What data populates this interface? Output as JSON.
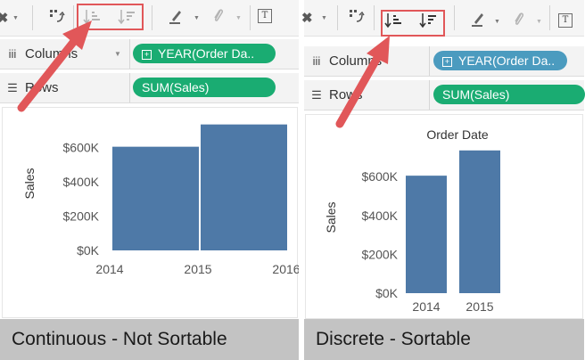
{
  "left_panel": {
    "shelves": {
      "columns": {
        "label": "Columns",
        "pill": "YEAR(Order Da..",
        "pill_plus": "+",
        "icon": "columns-icon"
      },
      "rows": {
        "label": "Rows",
        "pill": "SUM(Sales)",
        "icon": "rows-icon"
      }
    },
    "caption": "Continuous - Not Sortable"
  },
  "right_panel": {
    "shelves": {
      "columns": {
        "label": "Columns",
        "pill": "YEAR(Order Da..",
        "pill_plus": "+",
        "icon": "columns-icon"
      },
      "rows": {
        "label": "Rows",
        "pill": "SUM(Sales)",
        "icon": "rows-icon"
      }
    },
    "caption": "Discrete - Sortable"
  },
  "toolbar": {
    "icons": [
      "clear-icon",
      "swap-icon",
      "sort-ascending-icon",
      "sort-descending-icon",
      "highlight-pen-icon",
      "pin-icon",
      "text-label-icon"
    ],
    "text_icon_glyph": "T"
  },
  "colors": {
    "bar": "#4e79a7",
    "highlight": "#e15759",
    "pill_green": "#1aac72",
    "pill_blue": "#4b9bbf",
    "caption_bg": "#c3c3c3"
  },
  "chart_data": [
    {
      "type": "bar",
      "variant": "continuous",
      "title": "",
      "ylabel": "Sales",
      "xlabel": "",
      "x_ticks": [
        "2014",
        "2015",
        "2016"
      ],
      "y_ticks": [
        "$0K",
        "$200K",
        "$400K",
        "$600K"
      ],
      "categories": [
        "2014",
        "2015"
      ],
      "values": [
        605000,
        735000
      ],
      "ylim": [
        0,
        780000
      ],
      "grid": false
    },
    {
      "type": "bar",
      "variant": "discrete",
      "title": "Order Date",
      "ylabel": "Sales",
      "xlabel": "",
      "x_ticks": [
        "2014",
        "2015"
      ],
      "y_ticks": [
        "$0K",
        "$200K",
        "$400K",
        "$600K"
      ],
      "categories": [
        "2014",
        "2015"
      ],
      "values": [
        605000,
        735000
      ],
      "ylim": [
        0,
        780000
      ],
      "grid": false
    }
  ]
}
